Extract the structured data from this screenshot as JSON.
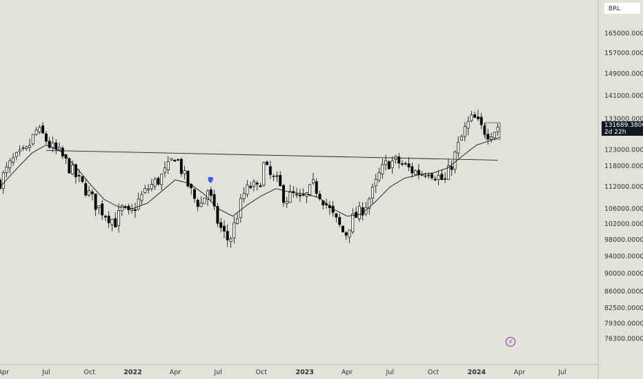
{
  "currency": "BRL",
  "last_price": "131689.3800",
  "countdown": "2d 22h",
  "flash_icon": "lightning-icon",
  "colors": {
    "background": "#e2e1da",
    "candle_up": "#ffffff",
    "candle_down": "#000000",
    "ma": "#111111",
    "marker": "#2962ff"
  },
  "chart_data": {
    "type": "candlestick",
    "title": "",
    "xlabel": "",
    "ylabel": "",
    "ylim": [
      72000,
      175000
    ],
    "log_scale": true,
    "grid": false,
    "y_ticks": [
      "165000.0000",
      "157000.0000",
      "149000.0000",
      "141000.0000",
      "133000.0000",
      "123000.0000",
      "118000.0000",
      "112000.0000",
      "106000.0000",
      "102000.0000",
      "98000.0000",
      "94000.0000",
      "90000.0000",
      "86000.0000",
      "82500.0000",
      "79300.0000",
      "76300.0000"
    ],
    "x_ticks": [
      {
        "label": "Apr",
        "date": "2021-04-01",
        "bold": false
      },
      {
        "label": "Jul",
        "date": "2021-07-01",
        "bold": false
      },
      {
        "label": "Oct",
        "date": "2021-10-01",
        "bold": false
      },
      {
        "label": "2022",
        "date": "2022-01-01",
        "bold": true
      },
      {
        "label": "Apr",
        "date": "2022-04-01",
        "bold": false
      },
      {
        "label": "Jul",
        "date": "2022-07-01",
        "bold": false
      },
      {
        "label": "Oct",
        "date": "2022-10-01",
        "bold": false
      },
      {
        "label": "2023",
        "date": "2023-01-01",
        "bold": true
      },
      {
        "label": "Apr",
        "date": "2023-04-01",
        "bold": false
      },
      {
        "label": "Jul",
        "date": "2023-07-01",
        "bold": false
      },
      {
        "label": "Oct",
        "date": "2023-10-01",
        "bold": false
      },
      {
        "label": "2024",
        "date": "2024-01-01",
        "bold": true
      },
      {
        "label": "Apr",
        "date": "2024-04-01",
        "bold": false
      },
      {
        "label": "Jul",
        "date": "2024-07-01",
        "bold": false
      }
    ],
    "x_range": [
      "2021-03-25",
      "2024-09-15"
    ],
    "close_path": [
      [
        "2021-03-25",
        113500
      ],
      [
        "2021-04-20",
        119500
      ],
      [
        "2021-05-20",
        122500
      ],
      [
        "2021-06-10",
        129000
      ],
      [
        "2021-06-25",
        127500
      ],
      [
        "2021-07-10",
        124000
      ],
      [
        "2021-08-01",
        121500
      ],
      [
        "2021-08-20",
        117500
      ],
      [
        "2021-09-10",
        113500
      ],
      [
        "2021-09-25",
        111000
      ],
      [
        "2021-10-15",
        107000
      ],
      [
        "2021-11-05",
        104500
      ],
      [
        "2021-11-25",
        102500
      ],
      [
        "2021-12-10",
        106000
      ],
      [
        "2021-12-25",
        104000
      ],
      [
        "2022-01-15",
        108500
      ],
      [
        "2022-02-05",
        112000
      ],
      [
        "2022-02-25",
        114000
      ],
      [
        "2022-03-15",
        117000
      ],
      [
        "2022-04-01",
        121500
      ],
      [
        "2022-04-20",
        115000
      ],
      [
        "2022-05-10",
        109000
      ],
      [
        "2022-05-25",
        107000
      ],
      [
        "2022-06-10",
        111500
      ],
      [
        "2022-06-25",
        104000
      ],
      [
        "2022-07-10",
        100000
      ],
      [
        "2022-07-25",
        97500
      ],
      [
        "2022-08-10",
        104000
      ],
      [
        "2022-08-25",
        110000
      ],
      [
        "2022-09-10",
        112500
      ],
      [
        "2022-09-25",
        111000
      ],
      [
        "2022-10-05",
        118500
      ],
      [
        "2022-10-20",
        115000
      ],
      [
        "2022-11-05",
        113000
      ],
      [
        "2022-11-20",
        108500
      ],
      [
        "2022-12-05",
        110000
      ],
      [
        "2022-12-20",
        108000
      ],
      [
        "2023-01-05",
        109500
      ],
      [
        "2023-01-20",
        112500
      ],
      [
        "2023-02-10",
        108500
      ],
      [
        "2023-02-25",
        105000
      ],
      [
        "2023-03-15",
        101500
      ],
      [
        "2023-03-28",
        99000
      ],
      [
        "2023-04-10",
        103000
      ],
      [
        "2023-04-25",
        104500
      ],
      [
        "2023-05-10",
        107000
      ],
      [
        "2023-05-25",
        110500
      ],
      [
        "2023-06-10",
        116000
      ],
      [
        "2023-06-25",
        119000
      ],
      [
        "2023-07-15",
        119500
      ],
      [
        "2023-08-01",
        118000
      ],
      [
        "2023-08-20",
        116500
      ],
      [
        "2023-09-05",
        116000
      ],
      [
        "2023-09-20",
        117000
      ],
      [
        "2023-10-05",
        115500
      ],
      [
        "2023-10-25",
        113500
      ],
      [
        "2023-11-10",
        119000
      ],
      [
        "2023-11-25",
        125000
      ],
      [
        "2023-12-10",
        130500
      ],
      [
        "2023-12-25",
        133500
      ],
      [
        "2024-01-10",
        130000
      ],
      [
        "2024-01-25",
        128500
      ],
      [
        "2024-02-10",
        129500
      ],
      [
        "2024-02-20",
        131700
      ]
    ],
    "ma_path": [
      [
        "2021-03-25",
        112000
      ],
      [
        "2021-05-01",
        117500
      ],
      [
        "2021-06-01",
        122000
      ],
      [
        "2021-07-01",
        124500
      ],
      [
        "2021-08-01",
        122500
      ],
      [
        "2021-09-01",
        118000
      ],
      [
        "2021-10-01",
        113000
      ],
      [
        "2021-11-01",
        108500
      ],
      [
        "2021-12-01",
        106500
      ],
      [
        "2022-01-01",
        106000
      ],
      [
        "2022-02-01",
        107500
      ],
      [
        "2022-03-01",
        110500
      ],
      [
        "2022-04-01",
        114000
      ],
      [
        "2022-05-01",
        113000
      ],
      [
        "2022-06-01",
        110000
      ],
      [
        "2022-07-01",
        106000
      ],
      [
        "2022-08-01",
        104000
      ],
      [
        "2022-09-01",
        107000
      ],
      [
        "2022-10-01",
        109500
      ],
      [
        "2022-11-01",
        111500
      ],
      [
        "2022-12-01",
        110500
      ],
      [
        "2023-01-01",
        110000
      ],
      [
        "2023-02-01",
        109000
      ],
      [
        "2023-03-01",
        106000
      ],
      [
        "2023-04-01",
        104000
      ],
      [
        "2023-05-01",
        104500
      ],
      [
        "2023-06-01",
        108000
      ],
      [
        "2023-07-01",
        112000
      ],
      [
        "2023-08-01",
        114500
      ],
      [
        "2023-09-01",
        115500
      ],
      [
        "2023-10-01",
        116000
      ],
      [
        "2023-11-01",
        117500
      ],
      [
        "2023-12-01",
        121000
      ],
      [
        "2024-01-01",
        124500
      ],
      [
        "2024-02-01",
        126000
      ],
      [
        "2024-02-20",
        127000
      ]
    ],
    "annotations": {
      "trendline": {
        "from": [
          "2021-07-01",
          122800
        ],
        "to": [
          "2024-02-15",
          119800
        ]
      },
      "box": {
        "from": [
          "2024-01-20",
          126300
        ],
        "to": [
          "2024-02-20",
          131700
        ]
      },
      "marker": {
        "date": "2022-06-15",
        "price": 113800
      }
    }
  }
}
